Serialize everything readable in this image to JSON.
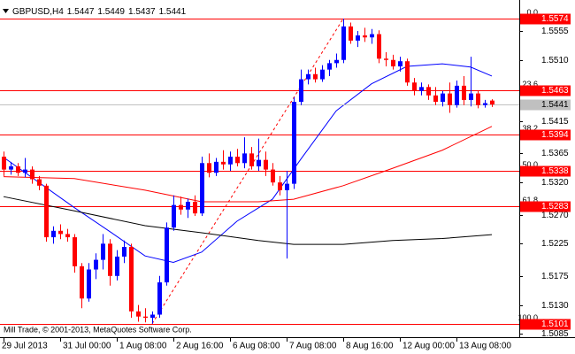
{
  "chart_data": {
    "type": "candlestick",
    "title": "GBPUSD,H4",
    "footer": "Mill Trade, © 2001-2013, MetaQuotes Software Corp.",
    "categories": [
      "29 Jul 2013",
      null,
      null,
      null,
      null,
      null,
      null,
      null,
      "31 Jul 00:00",
      null,
      null,
      null,
      null,
      null,
      null,
      null,
      "1 Aug 08:00",
      null,
      null,
      null,
      null,
      null,
      null,
      null,
      "2 Aug 16:00",
      null,
      null,
      null,
      null,
      null,
      null,
      null,
      "6 Aug 08:00",
      null,
      null,
      null,
      null,
      null,
      null,
      null,
      "7 Aug 08:00",
      null,
      null,
      null,
      null,
      null,
      null,
      null,
      "8 Aug 16:00",
      null,
      null,
      null,
      null,
      null,
      null,
      null,
      "12 Aug 00:00",
      null,
      null,
      null,
      null,
      null,
      null,
      null,
      "13 Aug 08:00",
      null,
      null,
      null,
      null,
      null
    ],
    "open": [
      1.536,
      1.534,
      1.5345,
      1.5335,
      1.534,
      1.5325,
      1.5315,
      1.5235,
      1.5245,
      1.524,
      1.5235,
      1.519,
      1.514,
      1.5185,
      1.52,
      1.5225,
      1.5175,
      1.5205,
      1.522,
      1.512,
      1.5112,
      1.511,
      1.5115,
      1.5165,
      1.525,
      1.5285,
      1.5278,
      1.529,
      1.5272,
      1.535,
      1.5335,
      1.5352,
      1.5348,
      1.536,
      1.535,
      1.5365,
      1.5345,
      1.5355,
      1.534,
      1.532,
      1.5308,
      1.5318,
      1.5445,
      1.548,
      1.5488,
      1.548,
      1.5495,
      1.5505,
      1.551,
      1.5562,
      1.554,
      1.5548,
      1.5545,
      1.555,
      1.5512,
      1.551,
      1.55,
      1.5508,
      1.5475,
      1.5462,
      1.5468,
      1.5455,
      1.5445,
      1.5458,
      1.544,
      1.547,
      1.5448,
      1.5458,
      1.544,
      1.5447
    ],
    "high": [
      1.5368,
      1.5352,
      1.535,
      1.5358,
      1.5345,
      1.533,
      1.5318,
      1.5252,
      1.5255,
      1.5248,
      1.524,
      1.5195,
      1.5195,
      1.521,
      1.524,
      1.5232,
      1.5215,
      1.523,
      1.5225,
      1.513,
      1.5125,
      1.512,
      1.5175,
      1.5258,
      1.53,
      1.5298,
      1.5295,
      1.53,
      1.536,
      1.5365,
      1.5358,
      1.537,
      1.5368,
      1.5372,
      1.539,
      1.5375,
      1.5388,
      1.5368,
      1.535,
      1.533,
      1.5338,
      1.5452,
      1.5495,
      1.5495,
      1.5498,
      1.5502,
      1.551,
      1.552,
      1.5574,
      1.5568,
      1.5555,
      1.556,
      1.5558,
      1.5556,
      1.5522,
      1.5518,
      1.5515,
      1.5512,
      1.5482,
      1.5475,
      1.5472,
      1.5468,
      1.5462,
      1.5475,
      1.5478,
      1.5485,
      1.5515,
      1.5462,
      1.5448,
      1.5449
    ],
    "low": [
      1.533,
      1.5332,
      1.533,
      1.5328,
      1.5318,
      1.5308,
      1.5228,
      1.5225,
      1.5232,
      1.5228,
      1.518,
      1.5125,
      1.5135,
      1.517,
      1.5185,
      1.516,
      1.5168,
      1.5195,
      1.511,
      1.5104,
      1.5103,
      1.5101,
      1.511,
      1.516,
      1.5245,
      1.527,
      1.5265,
      1.5268,
      1.5268,
      1.5328,
      1.533,
      1.534,
      1.5338,
      1.5345,
      1.5342,
      1.534,
      1.5338,
      1.533,
      1.5315,
      1.53,
      1.5202,
      1.531,
      1.544,
      1.5472,
      1.5475,
      1.5476,
      1.5485,
      1.5498,
      1.5505,
      1.5535,
      1.553,
      1.5538,
      1.5535,
      1.5505,
      1.55,
      1.5495,
      1.5492,
      1.547,
      1.5455,
      1.5455,
      1.5448,
      1.544,
      1.5438,
      1.5428,
      1.5436,
      1.544,
      1.5438,
      1.5435,
      1.5436,
      1.5437
    ],
    "close": [
      1.534,
      1.5345,
      1.5335,
      1.534,
      1.5325,
      1.5315,
      1.5235,
      1.5245,
      1.524,
      1.5235,
      1.519,
      1.514,
      1.5185,
      1.52,
      1.5225,
      1.5175,
      1.5205,
      1.522,
      1.512,
      1.5112,
      1.511,
      1.5115,
      1.5165,
      1.525,
      1.5285,
      1.5278,
      1.529,
      1.5272,
      1.535,
      1.5335,
      1.5352,
      1.5348,
      1.536,
      1.535,
      1.5365,
      1.5345,
      1.5355,
      1.534,
      1.532,
      1.5308,
      1.5318,
      1.5445,
      1.548,
      1.5488,
      1.548,
      1.5495,
      1.5505,
      1.551,
      1.5562,
      1.554,
      1.5548,
      1.5545,
      1.555,
      1.5512,
      1.551,
      1.55,
      1.5508,
      1.5475,
      1.5462,
      1.5468,
      1.5455,
      1.5445,
      1.5458,
      1.544,
      1.547,
      1.5448,
      1.5458,
      1.544,
      1.5443,
      1.5441
    ],
    "colors": {
      "up": "#0000ff",
      "down": "#ff0000",
      "wick_up": "#0000ff",
      "wick_down": "#ff0000",
      "price_line": "#c0c0c0"
    },
    "ylim": [
      1.508,
      1.5592
    ],
    "yticks": [
      1.5555,
      {
        "value": 1.551,
        "label": "1.5510"
      },
      1.5415,
      1.5365,
      {
        "value": 1.532,
        "label": "1.5320"
      },
      {
        "value": 1.527,
        "label": "1.5270"
      },
      1.5225,
      1.5175,
      {
        "value": 1.513,
        "label": "1.5130"
      },
      1.5085
    ],
    "grid": false,
    "fibonacci": {
      "levels": [
        "0.0",
        "23.6",
        "38.2",
        "50.0",
        "61.8",
        "100.0"
      ],
      "prices": [
        1.5574,
        1.5463,
        1.5394,
        1.5338,
        1.5283,
        1.5101
      ],
      "color": "#ff0000"
    },
    "moving_averages": [
      {
        "color": "#0000ff",
        "x": [
          0,
          10,
          15,
          20,
          24,
          28,
          33,
          38,
          42,
          47,
          52,
          57,
          62,
          66,
          69
        ],
        "values": [
          1.5359,
          1.5281,
          1.5244,
          1.5206,
          1.5196,
          1.5212,
          1.526,
          1.5294,
          1.5356,
          1.5431,
          1.5473,
          1.55,
          1.5504,
          1.5499,
          1.5485
        ]
      },
      {
        "color": "#ff0000",
        "x": [
          0,
          10,
          20,
          28,
          36,
          41,
          48,
          55,
          62,
          69
        ],
        "values": [
          1.5329,
          1.5326,
          1.5308,
          1.529,
          1.529,
          1.5294,
          1.5315,
          1.5342,
          1.537,
          1.5407
        ]
      },
      {
        "color": "#000000",
        "x": [
          0,
          10,
          20,
          28,
          36,
          41,
          48,
          55,
          62,
          69
        ],
        "values": [
          1.5298,
          1.5276,
          1.5253,
          1.5242,
          1.523,
          1.5224,
          1.5224,
          1.523,
          1.5233,
          1.5239
        ]
      }
    ]
  }
}
